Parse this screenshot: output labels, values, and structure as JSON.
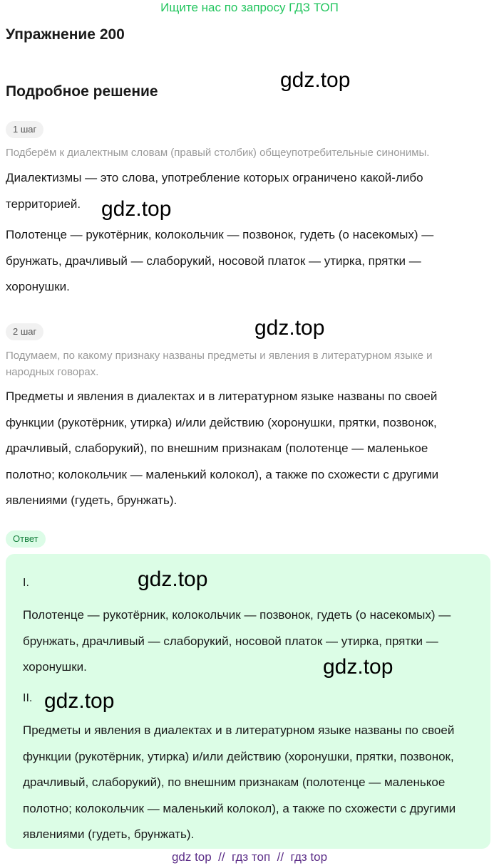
{
  "banner": "Ищите нас по запросу ГДЗ ТОП",
  "title": "Упражнение 200",
  "subtitle": "Подробное решение",
  "steps": [
    {
      "label": "1 шаг",
      "hint": "Подберём к диалектным словам (правый столбик) общеупотребительные синонимы.",
      "paragraphs": [
        "Диалектизмы — это слова, употребление которых ограничено какой-либо территорией.",
        "Полотенце — рукотёрник, колокольчик — позвонок, гудеть (о насекомых) — брунжать, драчливый — слаборукий, носовой платок — утирка, прятки — хоронушки."
      ]
    },
    {
      "label": "2 шаг",
      "hint": "Подумаем, по какому признаку названы предметы и явления в литературном языке и народных говорах.",
      "paragraphs": [
        "Предметы и явления в диалектах и в литературном языке названы по своей функции (рукотёрник, утирка) и/или действию (хоронушки, прятки, позвонок, драчливый, слаборукий), по внешним признакам (полотенце — маленькое полотно; колокольчик — маленький колокол), а также по схожести с другими явлениями (гудеть, брунжать)."
      ]
    }
  ],
  "answer": {
    "label": "Ответ",
    "sections": [
      {
        "numeral": "I.",
        "text": "Полотенце — рукотёрник, колокольчик — позвонок, гудеть (о насекомых) — брунжать, драчливый — слаборукий, носовой платок — утирка, прятки — хоронушки."
      },
      {
        "numeral": "II.",
        "text": "Предметы и явления в диалектах и в литературном языке названы по своей функции (рукотёрник, утирка) и/или действию (хоронушки, прятки, позвонок, драчливый, слаборукий), по внешним признакам (полотенце — маленькое полотно; колокольчик — маленький колокол), а также по схожести с другими явлениями (гудеть, брунжать)."
      }
    ]
  },
  "watermarks": [
    "gdz.top",
    "gdz.top",
    "gdz.top",
    "gdz.top",
    "gdz.top",
    "gdz.top"
  ],
  "footer": "gdz top  //  гдз топ  //  гдз top"
}
